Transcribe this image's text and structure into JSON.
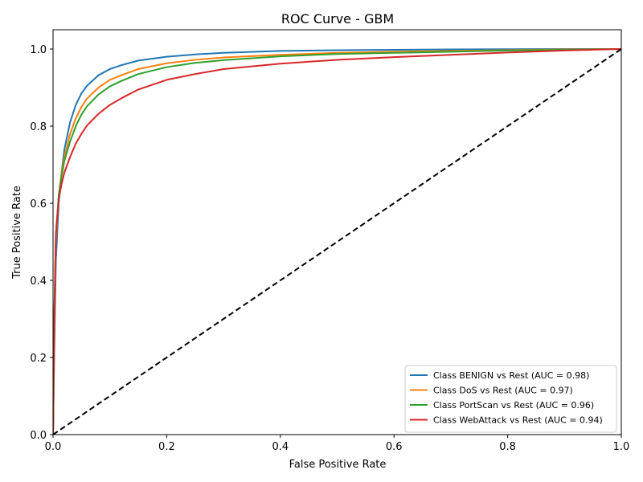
{
  "chart_data": {
    "type": "line",
    "title": "ROC Curve - GBM",
    "xlabel": "False Positive Rate",
    "ylabel": "True Positive Rate",
    "xlim": [
      0.0,
      1.0
    ],
    "ylim": [
      0.0,
      1.05
    ],
    "xticks": [
      "0.0",
      "0.2",
      "0.4",
      "0.6",
      "0.8",
      "1.0"
    ],
    "yticks": [
      "0.0",
      "0.2",
      "0.4",
      "0.6",
      "0.8",
      "1.0"
    ],
    "grid": false,
    "legend_position": "lower-right",
    "series": [
      {
        "name": "Class BENIGN vs Rest (AUC = 0.98)",
        "color": "#1f77b4",
        "x": [
          0.0,
          0.002,
          0.005,
          0.01,
          0.015,
          0.02,
          0.03,
          0.04,
          0.05,
          0.06,
          0.08,
          0.1,
          0.12,
          0.15,
          0.2,
          0.25,
          0.3,
          0.4,
          0.5,
          0.6,
          0.7,
          0.8,
          0.9,
          1.0
        ],
        "y": [
          0.0,
          0.2,
          0.45,
          0.6,
          0.68,
          0.74,
          0.81,
          0.855,
          0.885,
          0.905,
          0.932,
          0.948,
          0.958,
          0.97,
          0.98,
          0.986,
          0.99,
          0.995,
          0.997,
          0.998,
          0.999,
          0.9995,
          1.0,
          1.0
        ]
      },
      {
        "name": "Class DoS vs Rest (AUC = 0.97)",
        "color": "#ff7f0e",
        "x": [
          0.0,
          0.002,
          0.005,
          0.01,
          0.015,
          0.02,
          0.03,
          0.04,
          0.05,
          0.06,
          0.08,
          0.1,
          0.12,
          0.15,
          0.2,
          0.25,
          0.3,
          0.4,
          0.5,
          0.6,
          0.7,
          0.8,
          0.9,
          1.0
        ],
        "y": [
          0.0,
          0.25,
          0.5,
          0.62,
          0.68,
          0.72,
          0.78,
          0.82,
          0.85,
          0.872,
          0.9,
          0.92,
          0.932,
          0.948,
          0.963,
          0.972,
          0.978,
          0.985,
          0.99,
          0.993,
          0.995,
          0.997,
          0.999,
          1.0
        ]
      },
      {
        "name": "Class PortScan vs Rest (AUC = 0.96)",
        "color": "#2ca02c",
        "x": [
          0.0,
          0.002,
          0.005,
          0.01,
          0.015,
          0.02,
          0.03,
          0.04,
          0.05,
          0.06,
          0.08,
          0.1,
          0.12,
          0.15,
          0.2,
          0.25,
          0.3,
          0.4,
          0.5,
          0.6,
          0.7,
          0.8,
          0.9,
          1.0
        ],
        "y": [
          0.0,
          0.28,
          0.52,
          0.62,
          0.67,
          0.71,
          0.76,
          0.8,
          0.83,
          0.852,
          0.882,
          0.903,
          0.917,
          0.935,
          0.953,
          0.964,
          0.971,
          0.981,
          0.987,
          0.99,
          0.993,
          0.996,
          0.998,
          1.0
        ]
      },
      {
        "name": "Class WebAttack vs Rest (AUC = 0.94)",
        "color": "#d62728",
        "x": [
          0.0,
          0.002,
          0.005,
          0.01,
          0.015,
          0.02,
          0.03,
          0.04,
          0.05,
          0.06,
          0.08,
          0.1,
          0.12,
          0.15,
          0.2,
          0.25,
          0.3,
          0.4,
          0.5,
          0.6,
          0.7,
          0.8,
          0.9,
          1.0
        ],
        "y": [
          0.0,
          0.3,
          0.52,
          0.61,
          0.65,
          0.68,
          0.72,
          0.755,
          0.78,
          0.802,
          0.832,
          0.855,
          0.872,
          0.895,
          0.92,
          0.935,
          0.948,
          0.962,
          0.972,
          0.979,
          0.985,
          0.991,
          0.996,
          1.0
        ]
      }
    ],
    "diagonal": {
      "x": [
        0.0,
        1.0
      ],
      "y": [
        0.0,
        1.0
      ],
      "color": "#000000",
      "style": "dashed"
    }
  }
}
